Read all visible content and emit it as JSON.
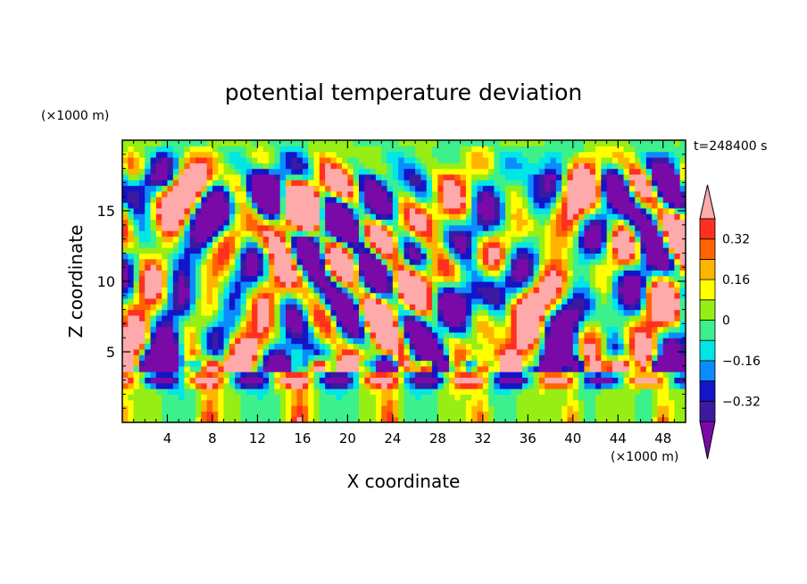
{
  "chart_data": {
    "type": "heatmap",
    "title": "potential temperature deviation",
    "xlabel": "X coordinate",
    "ylabel": "Z coordinate",
    "x_unit_label": "(×1000 m)",
    "y_unit_label": "(×1000 m)",
    "time_label": "t=248400 s",
    "xlim": [
      0,
      50
    ],
    "ylim": [
      0,
      20
    ],
    "x_ticks": [
      4,
      8,
      12,
      16,
      20,
      24,
      28,
      32,
      36,
      40,
      44,
      48
    ],
    "y_ticks": [
      5,
      10,
      15
    ],
    "contour_levels": [
      -0.4,
      -0.32,
      -0.24,
      -0.16,
      -0.08,
      0,
      0.08,
      0.16,
      0.24,
      0.32,
      0.4
    ],
    "colorbar_ticks": [
      0.32,
      0.16,
      0,
      -0.16,
      -0.32
    ],
    "colors": [
      "#7a0aa8",
      "#3c1aa0",
      "#1414c8",
      "#0a8cff",
      "#00e6e6",
      "#3cf08c",
      "#96ee14",
      "#ffff00",
      "#ffb400",
      "#ff6400",
      "#ff3020",
      "#ffaaaa"
    ],
    "field_description": "Contour-filled deviation field (x 0–50 km, z 0–20 km); strong alternating anomalies near z≈4 km with a noisy wave pattern above."
  }
}
